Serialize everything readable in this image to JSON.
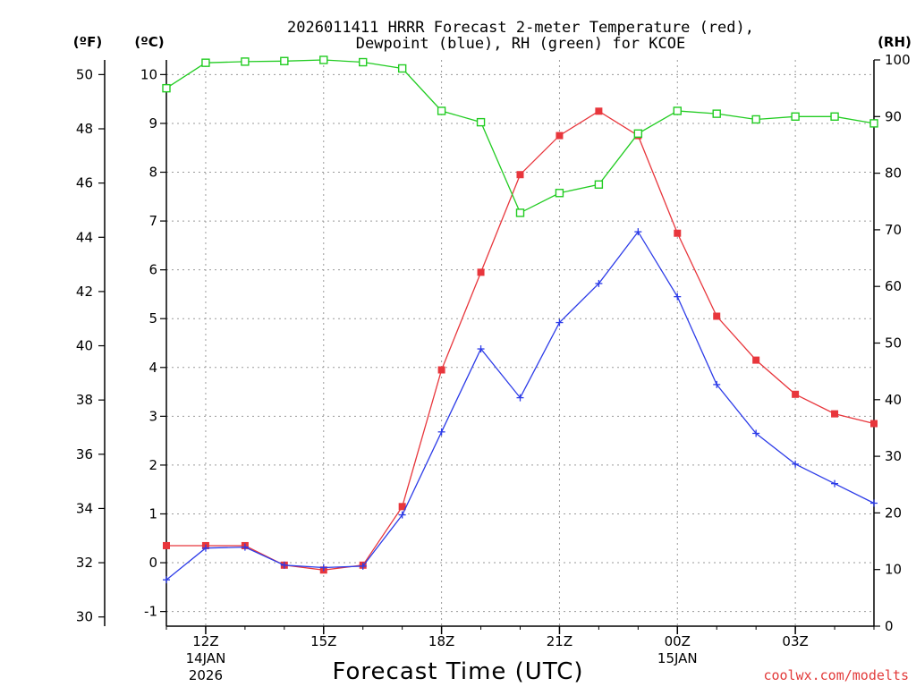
{
  "chart_data": {
    "type": "line",
    "title_lines": [
      "2026011411 HRRR Forecast 2-meter Temperature (red),",
      "Dewpoint (blue), RH (green) for KCOE"
    ],
    "xlabel": "Forecast Time (UTC)",
    "units": {
      "fahrenheit": "(ºF)",
      "celsius": "(ºC)",
      "rh": "(RH)"
    },
    "x_hours": [
      11,
      12,
      13,
      14,
      15,
      16,
      17,
      18,
      19,
      20,
      21,
      22,
      23,
      24,
      25,
      26,
      27,
      28,
      29
    ],
    "xlim": [
      11,
      29
    ],
    "x_ticks": [
      {
        "hour": 12,
        "label": "12Z",
        "sub1": "14JAN",
        "sub2": "2026"
      },
      {
        "hour": 15,
        "label": "15Z",
        "sub1": "",
        "sub2": ""
      },
      {
        "hour": 18,
        "label": "18Z",
        "sub1": "",
        "sub2": ""
      },
      {
        "hour": 21,
        "label": "21Z",
        "sub1": "",
        "sub2": ""
      },
      {
        "hour": 24,
        "label": "00Z",
        "sub1": "15JAN",
        "sub2": ""
      },
      {
        "hour": 27,
        "label": "03Z",
        "sub1": "",
        "sub2": ""
      }
    ],
    "y_celsius": {
      "ylim": [
        -1.3,
        10.3
      ],
      "ticks": [
        -1,
        0,
        1,
        2,
        3,
        4,
        5,
        6,
        7,
        8,
        9,
        10
      ]
    },
    "y_fahrenheit": {
      "ticks": [
        30,
        32,
        34,
        36,
        38,
        40,
        42,
        44,
        46,
        48,
        50
      ]
    },
    "y_rh": {
      "ylim": [
        0,
        100
      ],
      "ticks": [
        0,
        10,
        20,
        30,
        40,
        50,
        60,
        70,
        80,
        90,
        100
      ]
    },
    "series": [
      {
        "name": "Temperature",
        "color": "#e8363c",
        "axis": "celsius",
        "marker": "filled-square",
        "values": [
          0.35,
          0.35,
          0.35,
          -0.05,
          -0.15,
          -0.05,
          1.15,
          3.95,
          5.95,
          7.95,
          8.75,
          9.25,
          8.75,
          6.75,
          5.05,
          4.15,
          3.45,
          3.05,
          2.85
        ]
      },
      {
        "name": "Dewpoint",
        "color": "#2d3ce8",
        "axis": "celsius",
        "marker": "plus",
        "values": [
          -0.35,
          0.3,
          0.32,
          -0.05,
          -0.1,
          -0.07,
          0.98,
          2.68,
          4.38,
          3.38,
          4.92,
          5.72,
          6.78,
          5.45,
          3.65,
          2.65,
          2.02,
          1.62,
          1.22
        ]
      },
      {
        "name": "Relative Humidity",
        "color": "#22cc22",
        "axis": "rh",
        "marker": "open-square",
        "values": [
          95,
          99.5,
          99.7,
          99.8,
          100,
          99.6,
          98.5,
          91,
          89,
          73,
          76.5,
          78,
          87,
          91,
          90.5,
          89.5,
          90,
          90,
          88.8
        ]
      }
    ]
  },
  "credit": "coolwx.com/modelts"
}
